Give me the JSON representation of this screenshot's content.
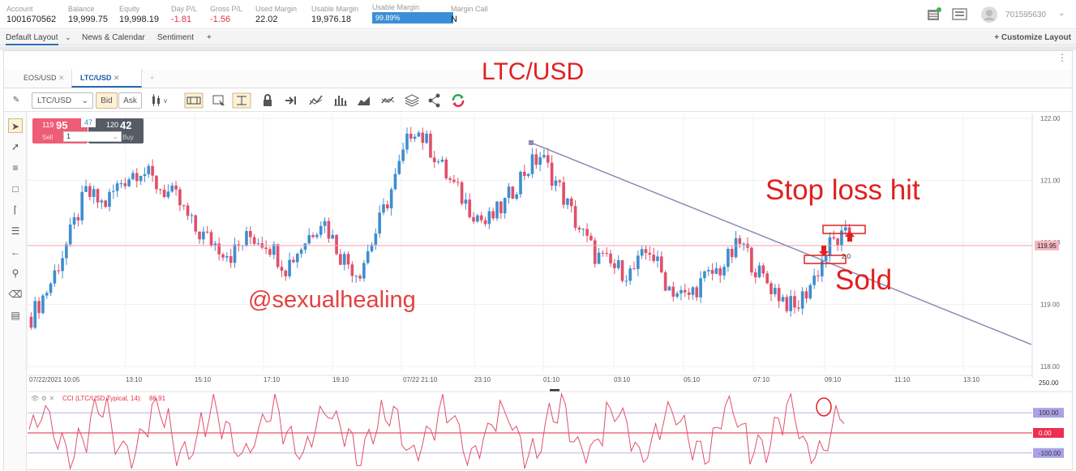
{
  "account": [
    {
      "label": "Account",
      "value": "1001670562"
    },
    {
      "label": "Balance",
      "value": "19,999.75"
    },
    {
      "label": "Equity",
      "value": "19,998.19"
    },
    {
      "label": "Day P/L",
      "value": "-1.81"
    },
    {
      "label": "Gross P/L",
      "value": "-1.56"
    },
    {
      "label": "Used Margin",
      "value": "22.02"
    },
    {
      "label": "Usable Margin",
      "value": "19,976.18"
    },
    {
      "label": "Usable Margin",
      "value": "99.89%"
    },
    {
      "label": "Margin Call",
      "value": "N"
    }
  ],
  "user_id": "701595630",
  "layout_tabs": [
    "Default Layout",
    "News & Calendar",
    "Sentiment",
    "+"
  ],
  "customize": "+ Customize Layout",
  "chart_tabs": [
    "EOS/USD",
    "LTC/USD"
  ],
  "toolbar": {
    "symbol": "LTC/USD",
    "bid": "Bid",
    "ask": "Ask"
  },
  "trade_widget": {
    "sell_small": "119",
    "sell_big": "95",
    "sell_label": "Sell",
    "spread": "47",
    "buy_small": "120",
    "buy_big": "42",
    "buy_label": "Buy",
    "qty": "1"
  },
  "annotations": {
    "title": "LTC/USD",
    "stop": "Stop loss hit",
    "sold": "Sold",
    "watermark": "@sexualhealing",
    "marker": "2.0"
  },
  "chart_data": {
    "type": "candlestick",
    "symbol": "LTC/USD",
    "x_ticks": [
      "07/22/2021 10:05",
      "13:10",
      "15:10",
      "17:10",
      "19:10",
      "07/22 21:10",
      "23:10",
      "01:10",
      "03:10",
      "05:10",
      "07:10",
      "09:10",
      "11:10",
      "13:10"
    ],
    "y_ticks": [
      "122.00",
      "121.00",
      "120.00",
      "119.00",
      "118.00"
    ],
    "ylim": [
      118,
      122
    ],
    "current_price": "119.95",
    "close_trace": [
      118.8,
      119.3,
      120.0,
      120.8,
      120.6,
      121.0,
      121.2,
      120.9,
      120.7,
      120.2,
      120.0,
      119.8,
      120.1,
      120.0,
      119.6,
      120.0,
      120.4,
      119.8,
      119.5,
      120.2,
      121.0,
      121.9,
      121.5,
      121.0,
      120.6,
      120.3,
      120.6,
      121.1,
      121.4,
      120.9,
      120.3,
      119.8,
      119.6,
      119.5,
      119.9,
      119.3,
      119.1,
      119.4,
      119.6,
      120.0,
      119.5,
      119.2,
      118.9,
      119.4,
      120.0,
      120.1
    ],
    "indicator": {
      "name": "CCI (LTC/USD.Typical, 14):",
      "value": "86.91",
      "y_ticks": [
        "250.00",
        "100.00",
        "0.00",
        "-100.00"
      ]
    }
  },
  "colors": {
    "up": "#3e8ed0",
    "down": "#e0506a",
    "accent": "#e02020",
    "trendline": "#8c8cb8"
  }
}
